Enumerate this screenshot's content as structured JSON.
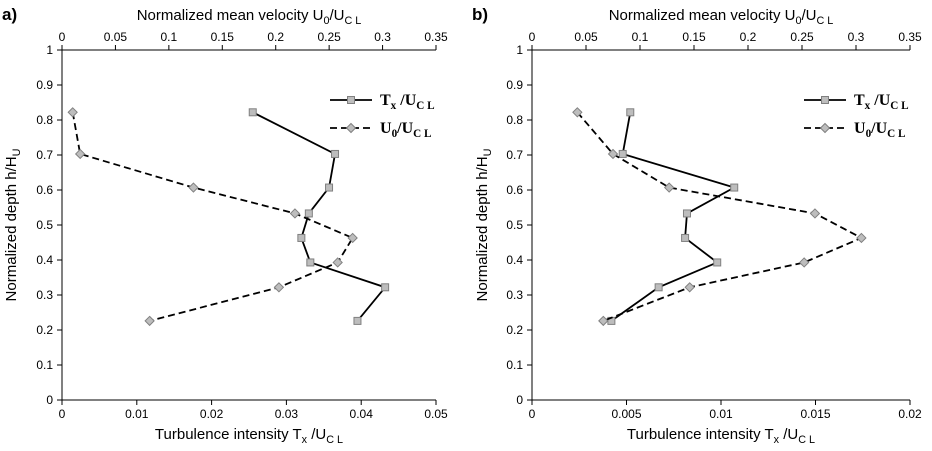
{
  "chart_data": [
    {
      "type": "line",
      "panel_label": "a)",
      "bottom_axis": {
        "label": "Turbulence intensity T",
        "label_sub": "x",
        "label_tail": " /U",
        "label_tail_sub": "C L",
        "range": [
          0,
          0.05
        ],
        "ticks": [
          "0",
          "0.01",
          "0.02",
          "0.03",
          "0.04",
          "0.05"
        ]
      },
      "top_axis": {
        "label": "Normalized mean velocity U",
        "label_sub": "0",
        "label_tail": "/U",
        "label_tail_sub": "C L",
        "range": [
          0,
          0.35
        ],
        "ticks": [
          "0",
          "0.05",
          "0.1",
          "0.15",
          "0.2",
          "0.25",
          "0.3",
          "0.35"
        ]
      },
      "y_axis": {
        "label": "Normalized depth h/H",
        "label_sub": "U",
        "range": [
          0,
          1
        ],
        "ticks": [
          "0",
          "0.1",
          "0.2",
          "0.3",
          "0.4",
          "0.5",
          "0.6",
          "0.7",
          "0.8",
          "0.9",
          "1"
        ]
      },
      "legend_position": "top-right",
      "series": [
        {
          "name": "T",
          "name_sub": "x",
          "name_tail": " /U",
          "name_tail_sub": "C L",
          "axis": "bottom",
          "style": "solid",
          "marker": "square",
          "x": [
            0.0255,
            0.0365,
            0.0357,
            0.033,
            0.032,
            0.0332,
            0.0432,
            0.0395
          ],
          "y": [
            0.822,
            0.703,
            0.607,
            0.533,
            0.463,
            0.393,
            0.322,
            0.226
          ]
        },
        {
          "name": "U",
          "name_sub": "0",
          "name_tail": "/U",
          "name_tail_sub": "C L",
          "axis": "top",
          "style": "dashed",
          "marker": "diamond",
          "x": [
            0.01,
            0.017,
            0.123,
            0.218,
            0.272,
            0.258,
            0.203,
            0.082
          ],
          "y": [
            0.822,
            0.703,
            0.607,
            0.533,
            0.463,
            0.393,
            0.322,
            0.226
          ]
        }
      ]
    },
    {
      "type": "line",
      "panel_label": "b)",
      "bottom_axis": {
        "label": "Turbulence intensity T",
        "label_sub": "x",
        "label_tail": " /U",
        "label_tail_sub": "C L",
        "range": [
          0,
          0.02
        ],
        "ticks": [
          "0",
          "0.005",
          "0.01",
          "0.015",
          "0.02"
        ]
      },
      "top_axis": {
        "label": "Normalized mean velocity U",
        "label_sub": "0",
        "label_tail": "/U",
        "label_tail_sub": "C L",
        "range": [
          0,
          0.35
        ],
        "ticks": [
          "0",
          "0.05",
          "0.1",
          "0.15",
          "0.2",
          "0.25",
          "0.3",
          "0.35"
        ]
      },
      "y_axis": {
        "label": "Normalized depth h/H",
        "label_sub": "U",
        "range": [
          0,
          1
        ],
        "ticks": [
          "0",
          "0.1",
          "0.2",
          "0.3",
          "0.4",
          "0.5",
          "0.6",
          "0.7",
          "0.8",
          "0.9",
          "1"
        ]
      },
      "legend_position": "top-right",
      "series": [
        {
          "name": "T",
          "name_sub": "x",
          "name_tail": " /U",
          "name_tail_sub": "C L",
          "axis": "bottom",
          "style": "solid",
          "marker": "square",
          "x": [
            0.0052,
            0.0048,
            0.0107,
            0.0082,
            0.0081,
            0.0098,
            0.0067,
            0.0042
          ],
          "y": [
            0.822,
            0.703,
            0.607,
            0.533,
            0.463,
            0.393,
            0.322,
            0.226
          ]
        },
        {
          "name": "U",
          "name_sub": "0",
          "name_tail": "/U",
          "name_tail_sub": "C L",
          "axis": "top",
          "style": "dashed",
          "marker": "diamond",
          "x": [
            0.042,
            0.075,
            0.127,
            0.262,
            0.305,
            0.252,
            0.146,
            0.066
          ],
          "y": [
            0.822,
            0.703,
            0.607,
            0.533,
            0.463,
            0.393,
            0.322,
            0.226
          ]
        }
      ]
    }
  ],
  "colors": {
    "solid_line": "#000000",
    "dashed_line": "#000000",
    "marker_fill": "#bdbdbd",
    "marker_stroke": "#808080",
    "axis": "#000000",
    "background": "#ffffff"
  }
}
